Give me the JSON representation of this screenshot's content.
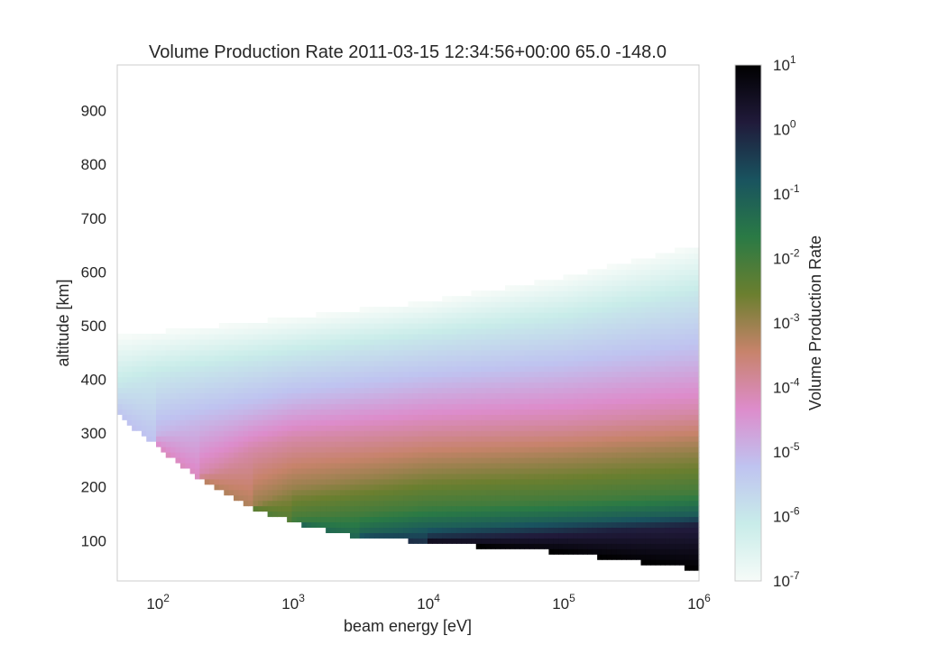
{
  "chart_data": {
    "type": "heatmap",
    "title": "Volume Production Rate 2011-03-15 12:34:56+00:00  65.0 -148.0",
    "xlabel": "beam energy [eV]",
    "ylabel": "altitude [km]",
    "xscale": "log",
    "xlim": [
      50,
      1000000
    ],
    "ylim": [
      25,
      985
    ],
    "xticks": [
      {
        "value": 100,
        "base": "10",
        "exp": "2"
      },
      {
        "value": 1000,
        "base": "10",
        "exp": "3"
      },
      {
        "value": 10000,
        "base": "10",
        "exp": "4"
      },
      {
        "value": 100000,
        "base": "10",
        "exp": "5"
      },
      {
        "value": 1000000,
        "base": "10",
        "exp": "6"
      }
    ],
    "yticks": [
      {
        "value": 100,
        "label": "100"
      },
      {
        "value": 200,
        "label": "200"
      },
      {
        "value": 300,
        "label": "300"
      },
      {
        "value": 400,
        "label": "400"
      },
      {
        "value": 500,
        "label": "500"
      },
      {
        "value": 600,
        "label": "600"
      },
      {
        "value": 700,
        "label": "700"
      },
      {
        "value": 800,
        "label": "800"
      },
      {
        "value": 900,
        "label": "900"
      }
    ],
    "grid": false,
    "colormap": "cubehelix_r",
    "colorbar": {
      "label": "Volume Production Rate",
      "scale": "log",
      "range": [
        1e-07,
        10
      ],
      "ticks": [
        {
          "value": 10,
          "base": "10",
          "exp": "1"
        },
        {
          "value": 1,
          "base": "10",
          "exp": "0"
        },
        {
          "value": 0.1,
          "base": "10",
          "exp": "-1"
        },
        {
          "value": 0.01,
          "base": "10",
          "exp": "-2"
        },
        {
          "value": 0.001,
          "base": "10",
          "exp": "-3"
        },
        {
          "value": 0.0001,
          "base": "10",
          "exp": "-4"
        },
        {
          "value": 1e-05,
          "base": "10",
          "exp": "-5"
        },
        {
          "value": 1e-06,
          "base": "10",
          "exp": "-6"
        },
        {
          "value": 1e-07,
          "base": "10",
          "exp": "-7"
        }
      ],
      "stops": [
        "#f6fbf8",
        "#c8ece9",
        "#bfc3f0",
        "#dd8ccb",
        "#c7836b",
        "#6b7f2f",
        "#2a7a45",
        "#19535f",
        "#201a3a",
        "#000000"
      ]
    },
    "regions": [
      {
        "name": "lower boundary (below: no data)",
        "energy": [
          50,
          100,
          200,
          500,
          1000,
          2000,
          3000,
          10000,
          100000,
          1000000
        ],
        "altitude": [
          335,
          275,
          215,
          160,
          135,
          115,
          108,
          97,
          78,
          47
        ]
      },
      {
        "name": "10^-7 contour (upper edge)",
        "energy": [
          50,
          100,
          1000,
          10000,
          100000,
          1000000
        ],
        "altitude": [
          480,
          488,
          515,
          545,
          590,
          650
        ]
      },
      {
        "name": "10^-6 contour",
        "energy": [
          50,
          100,
          1000,
          10000,
          100000,
          1000000
        ],
        "altitude": [
          390,
          410,
          448,
          480,
          510,
          560
        ]
      },
      {
        "name": "10^-5 contour",
        "energy": [
          100,
          200,
          1000,
          10000,
          100000,
          1000000
        ],
        "altitude": [
          300,
          320,
          360,
          390,
          410,
          440
        ]
      },
      {
        "name": "10^-4 contour",
        "energy": [
          200,
          500,
          1000,
          10000,
          100000,
          1000000
        ],
        "altitude": [
          220,
          270,
          290,
          310,
          320,
          340
        ]
      },
      {
        "name": "10^-3 contour",
        "energy": [
          500,
          1000,
          10000,
          100000,
          1000000
        ],
        "altitude": [
          165,
          200,
          235,
          250,
          270
        ]
      },
      {
        "name": "10^-2 contour",
        "energy": [
          1000,
          3000,
          10000,
          100000,
          1000000
        ],
        "altitude": [
          140,
          150,
          165,
          175,
          190
        ]
      },
      {
        "name": "10^-1 contour",
        "energy": [
          3000,
          10000,
          100000,
          1000000
        ],
        "altitude": [
          110,
          125,
          138,
          150
        ]
      },
      {
        "name": "10^0 contour",
        "energy": [
          10000,
          100000,
          1000000
        ],
        "altitude": [
          103,
          115,
          130
        ]
      }
    ]
  }
}
